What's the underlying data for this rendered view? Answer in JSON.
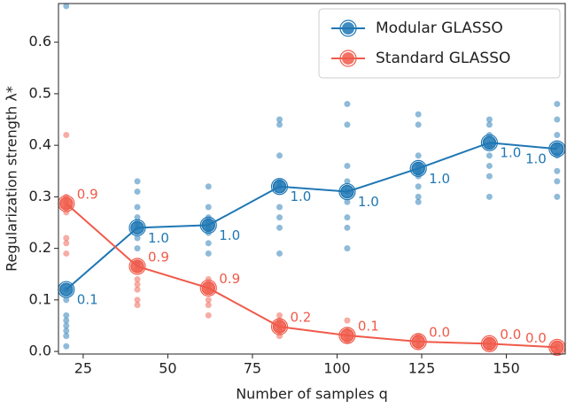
{
  "chart_data": {
    "type": "line",
    "x_label": "Number of samples q",
    "y_label": "Regularization strength λ*",
    "x": [
      20,
      41,
      62,
      83,
      103,
      124,
      145,
      165
    ],
    "xlim": [
      17.7,
      167.4
    ],
    "xticks": [
      25,
      50,
      75,
      100,
      125,
      150
    ],
    "ylim": [
      -0.005,
      0.675
    ],
    "yticks": [
      {
        "value": 0,
        "label": "0.0"
      },
      0.1,
      0.2,
      0.3,
      0.4,
      0.5,
      0.6
    ],
    "legend": "upper right",
    "series": [
      {
        "name": "Modular GLASSO",
        "color": "#1f77b4",
        "values": [
          0.12,
          0.24,
          0.245,
          0.32,
          0.31,
          0.355,
          0.405,
          0.393
        ],
        "point_labels": [
          "0.1",
          "1.0",
          "1.0",
          "1.0",
          "1.0",
          "1.0",
          "1.0",
          "1.0"
        ],
        "runs": [
          [
            0.67,
            0.12,
            0.1,
            0.07,
            0.06,
            0.05,
            0.04,
            0.03,
            0.01
          ],
          [
            0.33,
            0.31,
            0.28,
            0.26,
            0.25,
            0.24,
            0.22,
            0.2,
            0.17
          ],
          [
            0.32,
            0.28,
            0.26,
            0.25,
            0.24,
            0.23,
            0.21,
            0.19
          ],
          [
            0.45,
            0.44,
            0.38,
            0.33,
            0.32,
            0.28,
            0.26,
            0.24,
            0.19
          ],
          [
            0.48,
            0.44,
            0.36,
            0.33,
            0.31,
            0.29,
            0.26,
            0.24,
            0.2
          ],
          [
            0.46,
            0.44,
            0.38,
            0.36,
            0.35,
            0.34,
            0.32,
            0.3,
            0.29
          ],
          [
            0.45,
            0.44,
            0.42,
            0.4,
            0.38,
            0.36,
            0.34,
            0.3
          ],
          [
            0.48,
            0.45,
            0.42,
            0.4,
            0.38,
            0.35,
            0.33,
            0.3
          ]
        ]
      },
      {
        "name": "Standard GLASSO",
        "color": "#f05a4a",
        "values": [
          0.287,
          0.165,
          0.123,
          0.048,
          0.031,
          0.019,
          0.015,
          0.008
        ],
        "point_labels": [
          "0.9",
          "0.9",
          "0.9",
          "0.2",
          "0.1",
          "0.0",
          "0.0",
          "0.0"
        ],
        "runs": [
          [
            0.42,
            0.3,
            0.29,
            0.28,
            0.27,
            0.22,
            0.21,
            0.19
          ],
          [
            0.17,
            0.16,
            0.14,
            0.13,
            0.12,
            0.1,
            0.09
          ],
          [
            0.14,
            0.13,
            0.12,
            0.1,
            0.09,
            0.07
          ],
          [
            0.07,
            0.06,
            0.05,
            0.04,
            0.03
          ],
          [
            0.06,
            0.04,
            0.03,
            0.02
          ],
          [
            0.03,
            0.02,
            0.01
          ],
          [
            0.02,
            0.01
          ],
          [
            0.01,
            0
          ]
        ]
      }
    ]
  }
}
